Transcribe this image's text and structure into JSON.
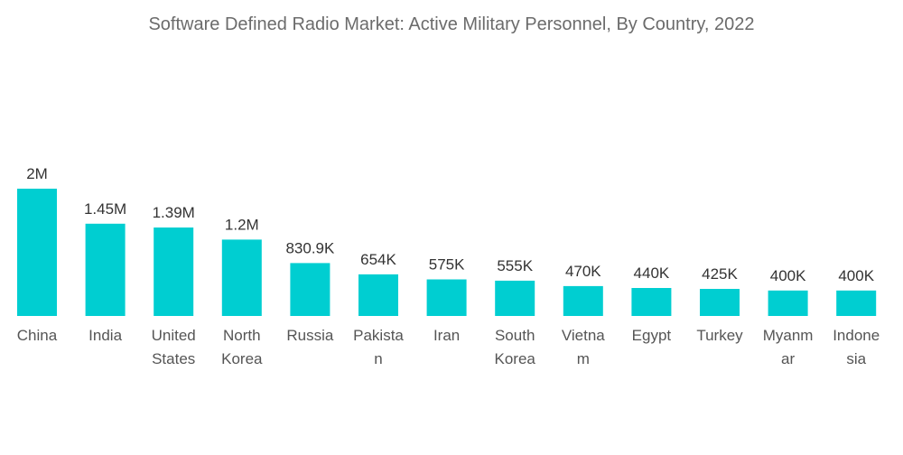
{
  "chart_data": {
    "type": "bar",
    "title": "Software Defined Radio Market: Active Military Personnel, By Country, 2022",
    "xlabel": "",
    "ylabel": "",
    "color": "#00CED1",
    "categories": [
      "China",
      "India",
      "United States",
      "North Korea",
      "Russia",
      "Pakistan",
      "Iran",
      "South Korea",
      "Vietnam",
      "Egypt",
      "Turkey",
      "Myanmar",
      "Indonesia"
    ],
    "category_lines": [
      [
        "China"
      ],
      [
        "India"
      ],
      [
        "United",
        "States"
      ],
      [
        "North",
        "Korea"
      ],
      [
        "Russia"
      ],
      [
        "Pakista",
        "n"
      ],
      [
        "Iran"
      ],
      [
        "South",
        "Korea"
      ],
      [
        "Vietna",
        "m"
      ],
      [
        "Egypt"
      ],
      [
        "Turkey"
      ],
      [
        "Myanm",
        "ar"
      ],
      [
        "Indone",
        "sia"
      ]
    ],
    "values": [
      2000000,
      1450000,
      1390000,
      1200000,
      830900,
      654000,
      575000,
      555000,
      470000,
      440000,
      425000,
      400000,
      400000
    ],
    "value_labels": [
      "2M",
      "1.45M",
      "1.39M",
      "1.2M",
      "830.9K",
      "654K",
      "575K",
      "555K",
      "470K",
      "440K",
      "425K",
      "400K",
      "400K"
    ],
    "ylim": [
      0,
      2000000
    ]
  }
}
